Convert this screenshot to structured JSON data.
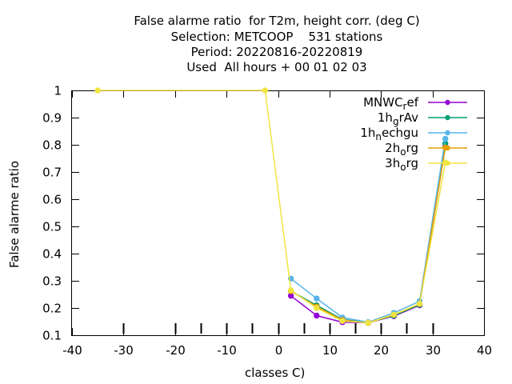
{
  "chart_data": {
    "type": "line",
    "title": [
      "False alarme ratio  for T2m, height corr. (deg C)",
      "Selection: METCOOP    531 stations",
      "Period: 20220816-20220819",
      "Used  All hours + 00 01 02 03"
    ],
    "xlabel": "classes C)",
    "ylabel": "False alarme ratio",
    "xlim": [
      -40,
      40
    ],
    "ylim": [
      0.1,
      1.0
    ],
    "xticks": [
      -40,
      -30,
      -20,
      -10,
      0,
      10,
      20,
      30,
      40
    ],
    "xtick_labels": [
      "-40",
      "-30",
      "-20",
      "-10",
      "0",
      "10",
      "20",
      "30",
      "40"
    ],
    "yticks": [
      0.1,
      0.2,
      0.3,
      0.4,
      0.5,
      0.6,
      0.7,
      0.8,
      0.9,
      1.0
    ],
    "ytick_labels": [
      "0.1",
      "0.2",
      "0.3",
      "0.4",
      "0.5",
      "0.6",
      "0.7",
      "0.8",
      "0.9",
      "1"
    ],
    "class_bounds": [
      -30,
      -20,
      -15,
      -10,
      -5,
      0,
      5,
      10,
      15,
      20,
      25,
      30
    ],
    "grid": false,
    "legend_position": "top-right",
    "series": [
      {
        "name": "MNWC_ref",
        "label_main": "MNWC",
        "label_sub": "r",
        "label_rest": "ef",
        "color": "#9400d3",
        "marker": "circle",
        "x": [
          2.5,
          7.5,
          12.5,
          17.5,
          22.5,
          27.5,
          32.5
        ],
        "y": [
          0.245,
          0.172,
          0.148,
          0.146,
          0.17,
          0.21,
          0.795
        ]
      },
      {
        "name": "1h_grAv",
        "label_main": "1h",
        "label_sub": "g",
        "label_rest": "rAv",
        "color": "#009e73",
        "marker": "circle",
        "x": [
          2.5,
          7.5,
          12.5,
          17.5,
          22.5,
          27.5,
          32.5
        ],
        "y": [
          0.262,
          0.21,
          0.158,
          0.146,
          0.172,
          0.212,
          0.805
        ]
      },
      {
        "name": "1h_nechgu",
        "label_main": "1h",
        "label_sub": "n",
        "label_rest": "echgu",
        "color": "#56b4e9",
        "marker": "circle",
        "x": [
          2.5,
          7.5,
          12.5,
          17.5,
          22.5,
          27.5,
          32.5
        ],
        "y": [
          0.308,
          0.235,
          0.165,
          0.148,
          0.182,
          0.225,
          0.822
        ]
      },
      {
        "name": "2h_org",
        "label_main": "2h",
        "label_sub": "o",
        "label_rest": "rg",
        "color": "#e69f00",
        "marker": "circle",
        "x": [
          2.5,
          7.5,
          12.5,
          17.5,
          22.5,
          27.5,
          32.5
        ],
        "y": [
          0.262,
          0.205,
          0.156,
          0.145,
          0.175,
          0.215,
          0.79
        ]
      },
      {
        "name": "3h_org",
        "label_main": "3h",
        "label_sub": "o",
        "label_rest": "rg",
        "color": "#f0e442",
        "marker": "circle",
        "x": [
          -35,
          -2.5,
          2.5,
          7.5,
          12.5,
          17.5,
          22.5,
          27.5,
          32.5
        ],
        "y": [
          1.0,
          1.0,
          0.265,
          0.2,
          0.152,
          0.146,
          0.176,
          0.216,
          0.735
        ]
      }
    ]
  }
}
